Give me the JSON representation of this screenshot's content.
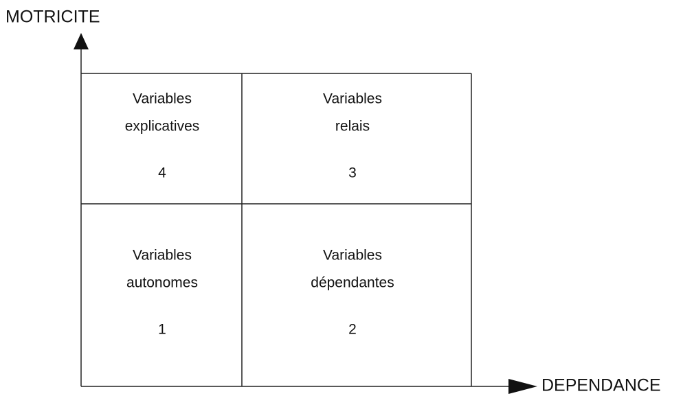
{
  "y_axis_label": "MOTRICITE",
  "x_axis_label": "DEPENDANCE",
  "quadrants": [
    {
      "lines": [
        "Variables",
        "explicatives"
      ],
      "number": 4
    },
    {
      "lines": [
        "Variables",
        "relais"
      ],
      "number": 3
    },
    {
      "lines": [
        "Variables",
        "autonomes"
      ],
      "number": 1
    },
    {
      "lines": [
        "Variables",
        "dépendantes"
      ],
      "number": 2
    }
  ]
}
